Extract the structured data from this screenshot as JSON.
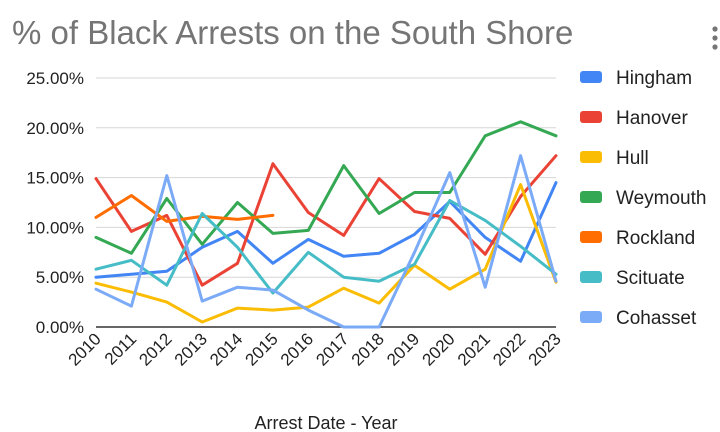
{
  "chart_data": {
    "type": "line",
    "title": "% of Black Arrests on the South Shore",
    "xlabel": "Arrest Date - Year",
    "ylabel": "",
    "ylim": [
      0,
      25
    ],
    "yticks": [
      "0.00%",
      "5.00%",
      "10.00%",
      "15.00%",
      "20.00%",
      "25.00%"
    ],
    "x": [
      "2010",
      "2011",
      "2012",
      "2013",
      "2014",
      "2015",
      "2016",
      "2017",
      "2018",
      "2019",
      "2020",
      "2021",
      "2022",
      "2023"
    ],
    "grid": true,
    "legend_position": "right",
    "series": [
      {
        "name": "Hingham",
        "color": "#4285F4",
        "values": [
          5.0,
          5.3,
          5.6,
          8.0,
          9.6,
          6.4,
          8.8,
          7.1,
          7.4,
          9.3,
          12.6,
          9.0,
          6.6,
          14.5
        ]
      },
      {
        "name": "Hanover",
        "color": "#EA4335",
        "values": [
          14.9,
          9.6,
          11.2,
          4.2,
          6.4,
          16.4,
          11.5,
          9.2,
          14.9,
          11.6,
          10.9,
          7.3,
          13.1,
          17.2
        ]
      },
      {
        "name": "Hull",
        "color": "#FBBC04",
        "values": [
          4.4,
          3.5,
          2.5,
          0.5,
          1.9,
          1.7,
          2.0,
          3.9,
          2.4,
          6.2,
          3.8,
          5.8,
          14.3,
          4.5
        ]
      },
      {
        "name": "Weymouth",
        "color": "#34A853",
        "values": [
          9.0,
          7.4,
          12.9,
          8.3,
          12.5,
          9.4,
          9.7,
          16.2,
          11.4,
          13.5,
          13.5,
          19.2,
          20.6,
          19.2
        ]
      },
      {
        "name": "Rockland",
        "color": "#FF6D01",
        "values": [
          11.0,
          13.2,
          10.6,
          11.1,
          10.8,
          11.2,
          null,
          null,
          null,
          null,
          null,
          null,
          null,
          null
        ]
      },
      {
        "name": "Scituate",
        "color": "#46BDC6",
        "values": [
          5.8,
          6.7,
          4.2,
          11.4,
          8.0,
          3.4,
          7.5,
          5.0,
          4.6,
          6.3,
          12.7,
          10.7,
          8.1,
          5.3
        ]
      },
      {
        "name": "Cohasset",
        "color": "#7BAAF7",
        "values": [
          3.8,
          2.1,
          15.2,
          2.6,
          4.0,
          3.7,
          1.7,
          0.0,
          0.0,
          7.5,
          15.5,
          4.0,
          17.2,
          4.6
        ]
      }
    ]
  }
}
